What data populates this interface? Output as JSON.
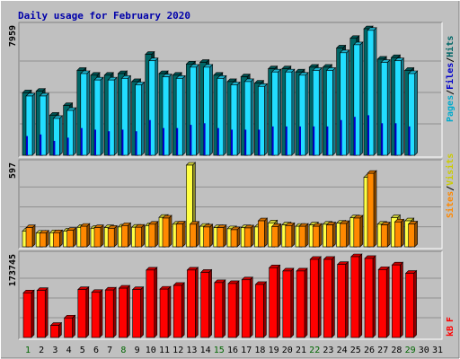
{
  "title": "Daily usage for February 2020",
  "days": [
    "1",
    "2",
    "3",
    "4",
    "5",
    "6",
    "7",
    "8",
    "9",
    "10",
    "11",
    "12",
    "13",
    "14",
    "15",
    "16",
    "17",
    "18",
    "19",
    "20",
    "21",
    "22",
    "23",
    "24",
    "25",
    "26",
    "27",
    "28",
    "29",
    "30",
    "31"
  ],
  "weekend_days": [
    1,
    8,
    15,
    22,
    29
  ],
  "colors": {
    "background": "#c0c0c0",
    "title": "#0000aa",
    "hits": "#006666",
    "files": "#00aacc",
    "files_fill": "#22ddff",
    "pages": "#0000cc",
    "sites": "#ff8800",
    "visits": "#ffff44",
    "kbytes": "#ff0000",
    "weekend_label": "#006600",
    "weekday_label": "#000000",
    "grid": "#808080"
  },
  "chart_data": [
    {
      "type": "bar",
      "panel": "hits-files-pages",
      "scale_label": "7959",
      "ylim": [
        0,
        7959
      ],
      "legend": [
        "Pages",
        "/",
        "Files",
        "/",
        "Hits"
      ],
      "categories": [
        "1",
        "2",
        "3",
        "4",
        "5",
        "6",
        "7",
        "8",
        "9",
        "10",
        "11",
        "12",
        "13",
        "14",
        "15",
        "16",
        "17",
        "18",
        "19",
        "20",
        "21",
        "22",
        "23",
        "24",
        "25",
        "26",
        "27",
        "28",
        "29",
        "30",
        "31"
      ],
      "series": [
        {
          "name": "Hits",
          "values": [
            3900,
            4000,
            2500,
            3100,
            5300,
            5000,
            5000,
            5100,
            4600,
            6300,
            5100,
            5000,
            5700,
            5800,
            5000,
            4600,
            4900,
            4500,
            5400,
            5400,
            5200,
            5500,
            5500,
            6700,
            7300,
            7900,
            6000,
            6100,
            5300,
            null,
            null
          ]
        },
        {
          "name": "Files",
          "values": [
            3700,
            3700,
            2300,
            2800,
            5100,
            4700,
            4700,
            4800,
            4400,
            5900,
            4900,
            4800,
            5500,
            5500,
            4800,
            4400,
            4600,
            4300,
            5200,
            5200,
            5000,
            5300,
            5300,
            6400,
            6900,
            7800,
            5800,
            5900,
            5100,
            null,
            null
          ]
        },
        {
          "name": "Pages",
          "values": [
            1200,
            1300,
            900,
            1100,
            1700,
            1600,
            1500,
            1600,
            1500,
            2200,
            1700,
            1700,
            1900,
            2000,
            1700,
            1600,
            1600,
            1600,
            1800,
            1800,
            1800,
            1800,
            1800,
            2200,
            2400,
            2500,
            2000,
            2000,
            1800,
            null,
            null
          ]
        }
      ]
    },
    {
      "type": "bar",
      "panel": "visits-sites",
      "scale_label": "597",
      "ylim": [
        0,
        597
      ],
      "legend": [
        "Sites",
        "/",
        "Visits"
      ],
      "categories": [
        "1",
        "2",
        "3",
        "4",
        "5",
        "6",
        "7",
        "8",
        "9",
        "10",
        "11",
        "12",
        "13",
        "14",
        "15",
        "16",
        "17",
        "18",
        "19",
        "20",
        "21",
        "22",
        "23",
        "24",
        "25",
        "26",
        "27",
        "28",
        "29",
        "30",
        "31"
      ],
      "series": [
        {
          "name": "Visits",
          "values": [
            115,
            100,
            103,
            115,
            142,
            135,
            140,
            145,
            143,
            155,
            215,
            165,
            597,
            150,
            140,
            132,
            140,
            145,
            175,
            160,
            150,
            160,
            165,
            173,
            212,
            508,
            165,
            213,
            190,
            null,
            null
          ]
        },
        {
          "name": "Sites",
          "values": [
            140,
            100,
            103,
            120,
            150,
            140,
            135,
            155,
            143,
            165,
            210,
            167,
            165,
            145,
            140,
            125,
            138,
            190,
            148,
            155,
            150,
            150,
            160,
            170,
            210,
            537,
            160,
            182,
            167,
            null,
            null
          ]
        }
      ]
    },
    {
      "type": "bar",
      "panel": "kbytes",
      "scale_label": "173745",
      "ylim": [
        0,
        173745
      ],
      "legend": [
        "kB",
        "F"
      ],
      "categories": [
        "1",
        "2",
        "3",
        "4",
        "5",
        "6",
        "7",
        "8",
        "9",
        "10",
        "11",
        "12",
        "13",
        "14",
        "15",
        "16",
        "17",
        "18",
        "19",
        "20",
        "21",
        "22",
        "23",
        "24",
        "25",
        "26",
        "27",
        "28",
        "29",
        "30",
        "31"
      ],
      "series": [
        {
          "name": "kB F",
          "values": [
            96000,
            101000,
            26000,
            42000,
            103000,
            97000,
            102000,
            106000,
            103000,
            145000,
            104000,
            112000,
            145000,
            140000,
            118000,
            116000,
            124000,
            114000,
            150000,
            143000,
            143000,
            168000,
            168000,
            157000,
            173745,
            170000,
            146000,
            156000,
            138000,
            null,
            null
          ]
        }
      ]
    }
  ]
}
